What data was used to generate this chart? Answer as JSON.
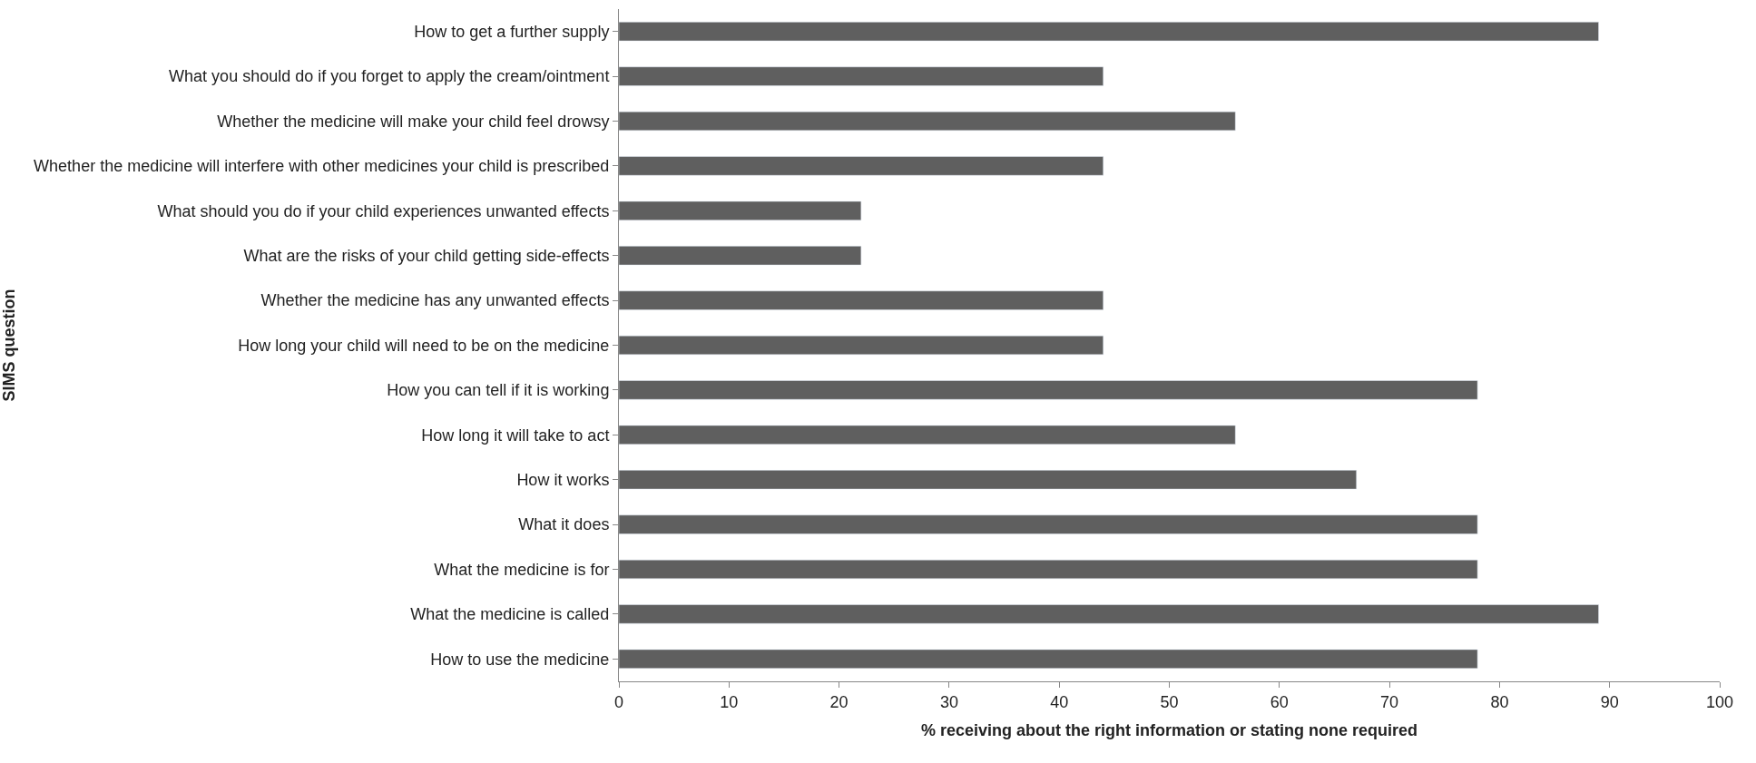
{
  "chart_data": {
    "type": "bar",
    "orientation": "horizontal",
    "xlabel": "% receiving about the right information or stating none required",
    "ylabel": "SIMS question",
    "categories": [
      "How to get a further supply",
      "What you should do if you forget to apply the cream/ointment",
      "Whether the medicine will make your child feel drowsy",
      "Whether the medicine will interfere with other medicines your child is prescribed",
      "What should you do if your child experiences unwanted effects",
      "What are the risks of your child getting side-effects",
      "Whether the medicine has any unwanted effects",
      "How long your child will need to be on the medicine",
      "How you can tell if it is working",
      "How long it will take to act",
      "How it works",
      "What it does",
      "What the medicine is for",
      "What the medicine is called",
      "How to use the medicine"
    ],
    "values": [
      89,
      44,
      56,
      44,
      22,
      22,
      44,
      44,
      78,
      56,
      67,
      78,
      78,
      89,
      78
    ],
    "color": "#5f5f5f",
    "xlim": [
      0,
      100
    ],
    "xticks": [
      0,
      10,
      20,
      30,
      40,
      50,
      60,
      70,
      80,
      90,
      100
    ],
    "legend": false
  }
}
